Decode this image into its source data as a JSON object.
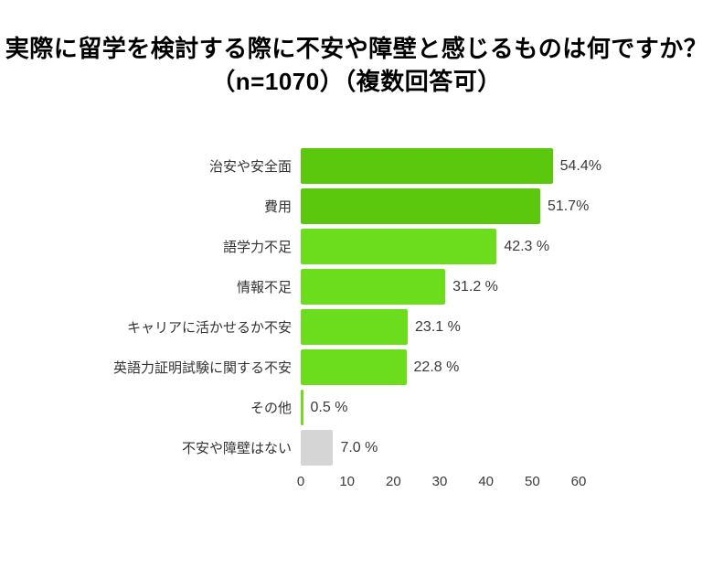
{
  "title": {
    "line1": "実際に留学を検討する際に不安や障壁と感じるものは何ですか？",
    "line2": "（n=1070）（複数回答可）"
  },
  "colors": {
    "bar_dark_green": "#5cc80d",
    "bar_light_green": "#6cdd1c",
    "bar_gray": "#d5d5d5",
    "text": "#3a3a3a",
    "title_text": "#000000",
    "background": "#ffffff"
  },
  "chart_data": {
    "type": "bar",
    "orientation": "horizontal",
    "title": "実際に留学を検討する際に不安や障壁と感じるものは何ですか？（n=1070）（複数回答可）",
    "categories": [
      "治安や安全面",
      "費用",
      "語学力不足",
      "情報不足",
      "キャリアに活かせるか不安",
      "英語力証明試験に関する不安",
      "その他",
      "不安や障壁はない"
    ],
    "values": [
      54.4,
      51.7,
      42.3,
      31.2,
      23.1,
      22.8,
      0.5,
      7.0
    ],
    "value_labels": [
      "54.4%",
      "51.7%",
      "42.3 %",
      "31.2 %",
      "23.1 %",
      "22.8 %",
      "0.5 %",
      "7.0 %"
    ],
    "bar_colors": [
      "#5cc80d",
      "#5cc80d",
      "#6cdd1c",
      "#6cdd1c",
      "#6cdd1c",
      "#6cdd1c",
      "#6cdd1c",
      "#d5d5d5"
    ],
    "xlabel": "",
    "ylabel": "",
    "xlim": [
      0,
      60
    ],
    "x_ticks": [
      0,
      10,
      20,
      30,
      40,
      50,
      60
    ],
    "grid": false,
    "legend": "none",
    "data_labels": "outside-end"
  }
}
